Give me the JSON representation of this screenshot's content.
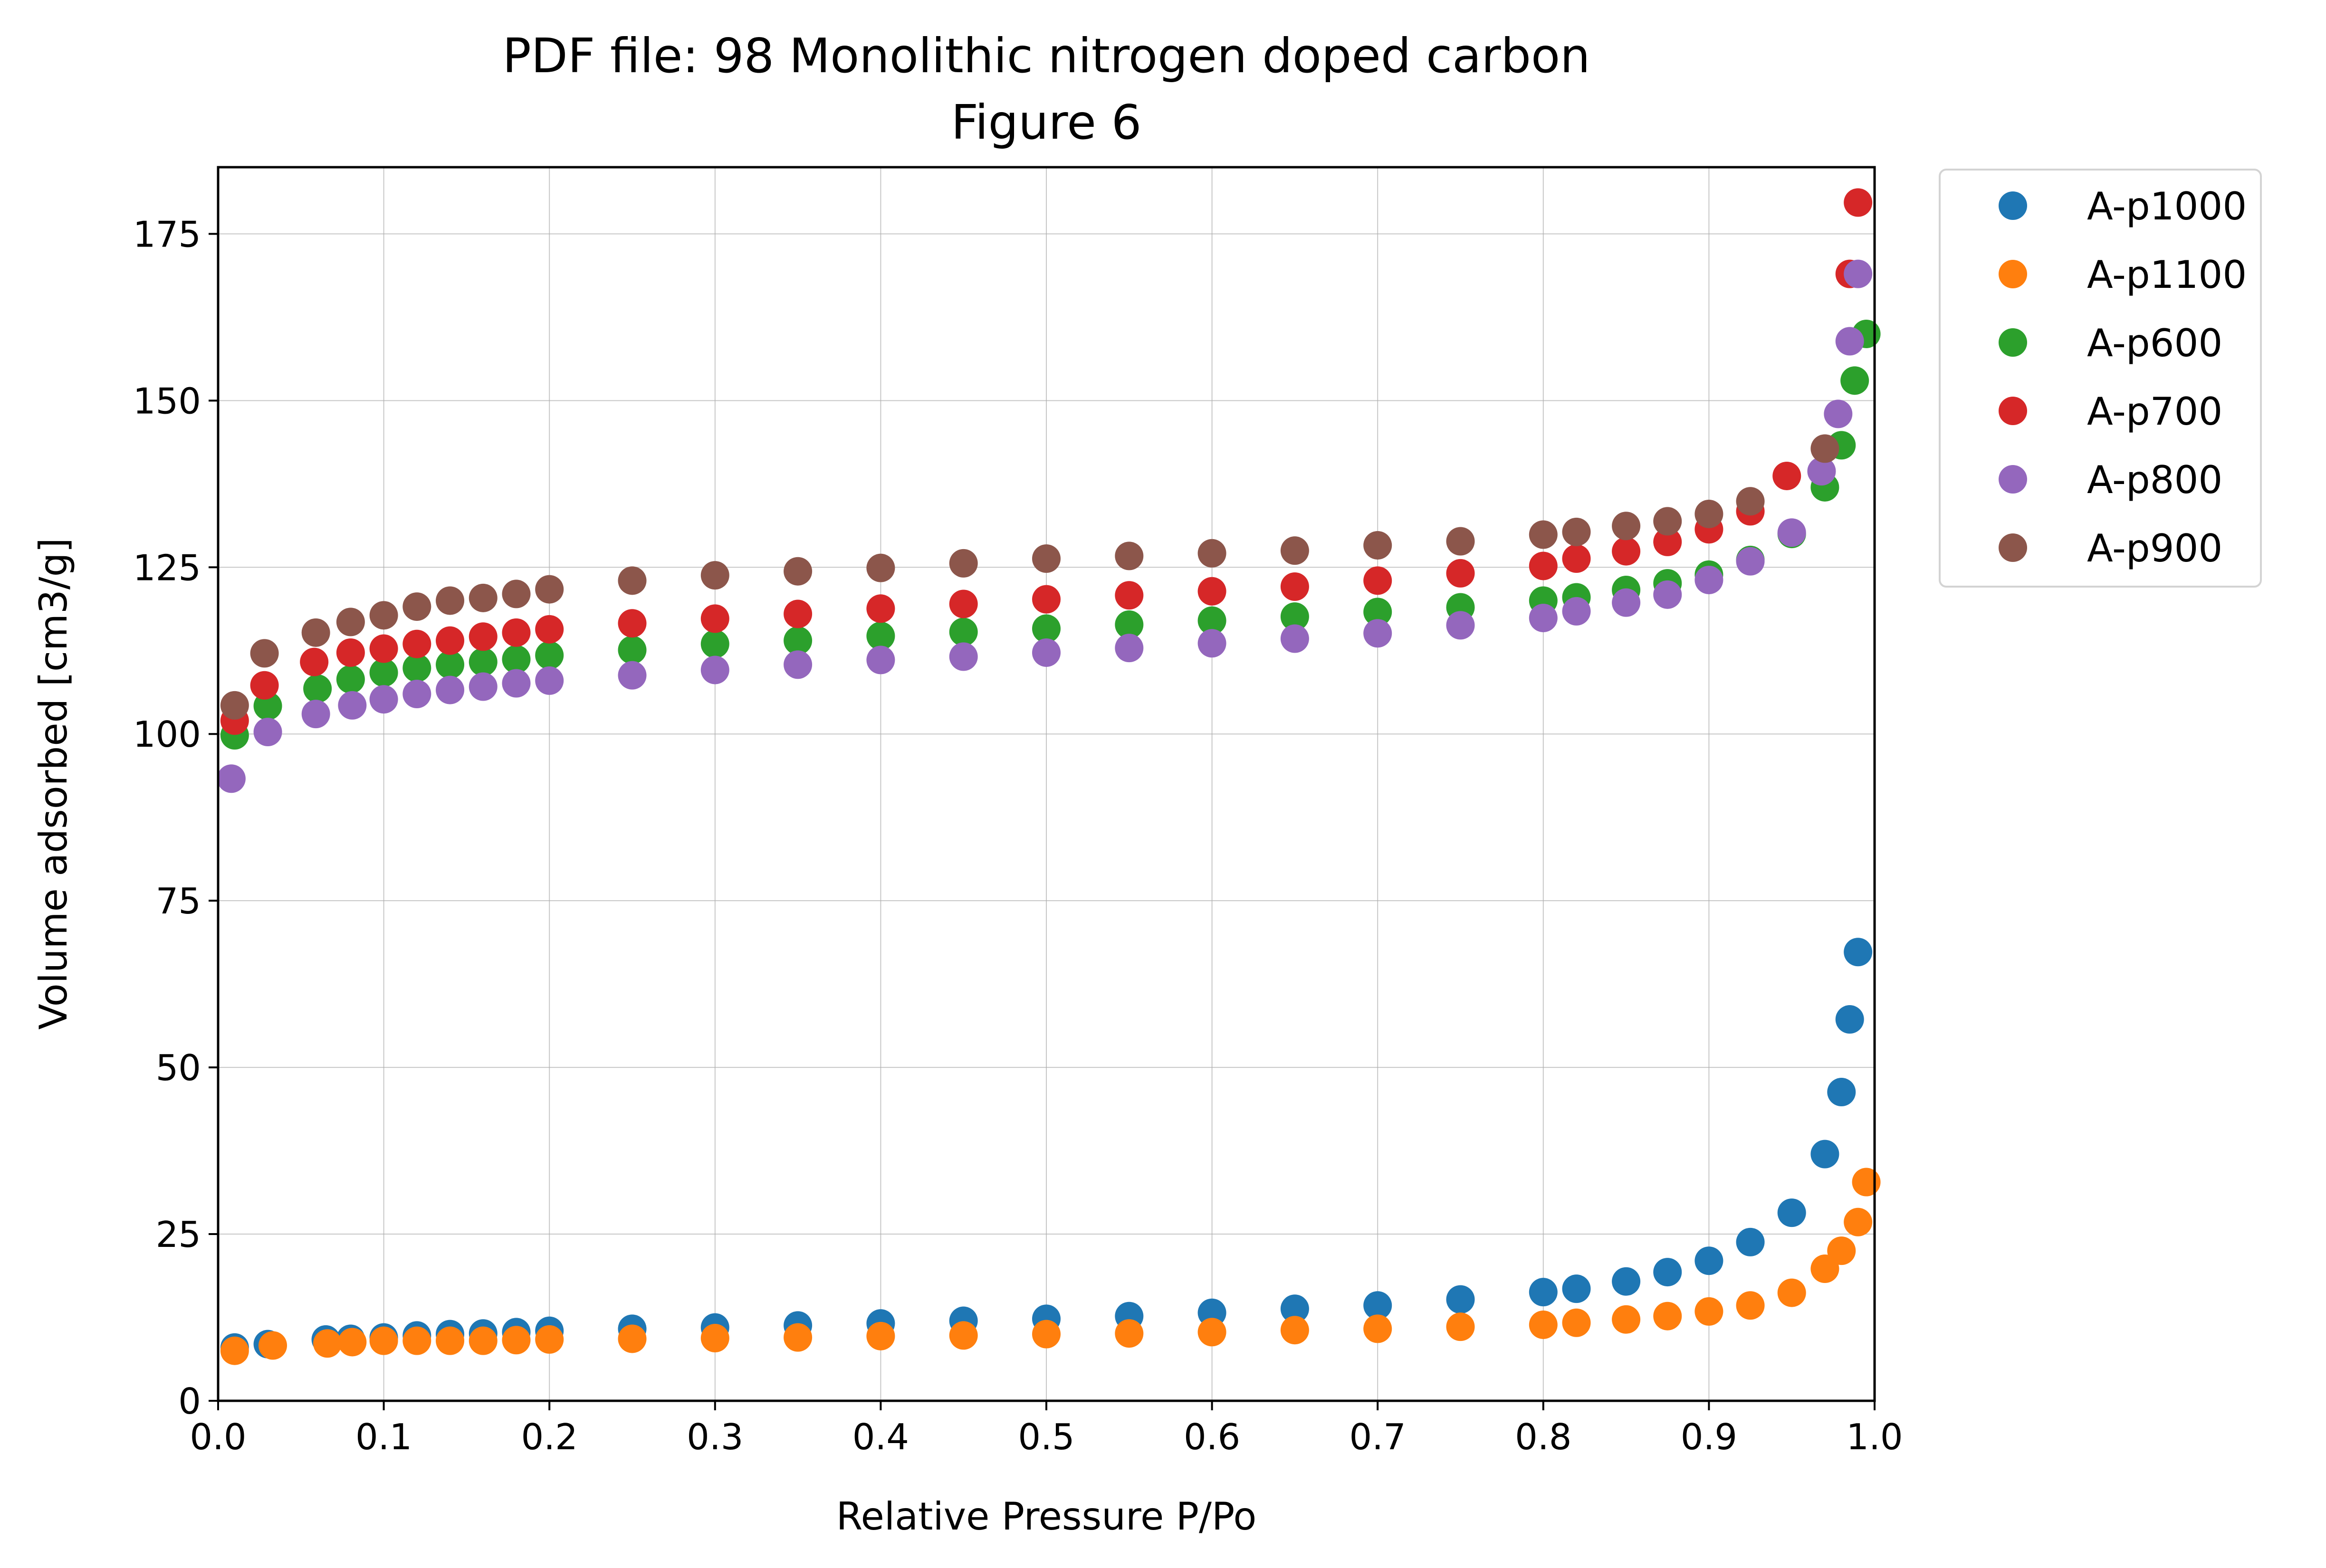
{
  "chart_data": {
    "type": "scatter",
    "title": "PDF file: 98 Monolithic nitrogen doped carbon",
    "subtitle": "Figure 6",
    "xlabel": "Relative Pressure P/Po",
    "ylabel": "Volume adsorbed [cm3/g]",
    "xlim": [
      0.0,
      1.0
    ],
    "ylim": [
      0,
      185
    ],
    "x_ticks": [
      0.0,
      0.1,
      0.2,
      0.3,
      0.4,
      0.5,
      0.6,
      0.7,
      0.8,
      0.9,
      1.0
    ],
    "x_tick_labels": [
      "0.0",
      "0.1",
      "0.2",
      "0.3",
      "0.4",
      "0.5",
      "0.6",
      "0.7",
      "0.8",
      "0.9",
      "1.0"
    ],
    "y_ticks": [
      0,
      25,
      50,
      75,
      100,
      125,
      150,
      175
    ],
    "y_tick_labels": [
      "0",
      "25",
      "50",
      "75",
      "100",
      "125",
      "150",
      "175"
    ],
    "grid": true,
    "legend_position": "outside-right-top",
    "series": [
      {
        "name": "A-p1000",
        "color": "#1f77b4",
        "x": [
          0.01,
          0.03,
          0.065,
          0.08,
          0.1,
          0.12,
          0.14,
          0.16,
          0.18,
          0.2,
          0.25,
          0.3,
          0.35,
          0.4,
          0.45,
          0.5,
          0.55,
          0.6,
          0.65,
          0.7,
          0.75,
          0.8,
          0.82,
          0.85,
          0.875,
          0.9,
          0.925,
          0.95,
          0.97,
          0.98,
          0.985,
          0.99
        ],
        "y": [
          8.0,
          8.5,
          9.2,
          9.3,
          9.5,
          9.8,
          10.0,
          10.1,
          10.3,
          10.5,
          10.8,
          11.0,
          11.3,
          11.6,
          12.0,
          12.3,
          12.7,
          13.2,
          13.8,
          14.3,
          15.2,
          16.3,
          16.8,
          17.9,
          19.3,
          21.0,
          23.8,
          28.2,
          37.0,
          46.3,
          57.2,
          67.3
        ]
      },
      {
        "name": "A-p1100",
        "color": "#ff7f0e",
        "x": [
          0.01,
          0.033,
          0.066,
          0.081,
          0.1,
          0.12,
          0.14,
          0.16,
          0.18,
          0.2,
          0.25,
          0.3,
          0.35,
          0.4,
          0.45,
          0.5,
          0.55,
          0.6,
          0.65,
          0.7,
          0.75,
          0.8,
          0.82,
          0.85,
          0.875,
          0.9,
          0.925,
          0.95,
          0.97,
          0.98,
          0.99,
          0.995
        ],
        "y": [
          7.5,
          8.3,
          8.6,
          8.8,
          9.0,
          9.0,
          9.0,
          9.0,
          9.1,
          9.2,
          9.3,
          9.4,
          9.5,
          9.7,
          9.8,
          10.0,
          10.1,
          10.3,
          10.6,
          10.8,
          11.1,
          11.4,
          11.7,
          12.2,
          12.7,
          13.4,
          14.3,
          16.2,
          19.8,
          22.5,
          26.8,
          32.8
        ]
      },
      {
        "name": "A-p600",
        "color": "#2ca02c",
        "x": [
          0.01,
          0.03,
          0.06,
          0.08,
          0.1,
          0.12,
          0.14,
          0.16,
          0.18,
          0.2,
          0.25,
          0.3,
          0.35,
          0.4,
          0.45,
          0.5,
          0.55,
          0.6,
          0.65,
          0.7,
          0.75,
          0.8,
          0.82,
          0.85,
          0.875,
          0.9,
          0.925,
          0.95,
          0.97,
          0.98,
          0.988,
          0.995
        ],
        "y": [
          99.8,
          104.2,
          106.8,
          108.2,
          109.2,
          109.9,
          110.4,
          110.8,
          111.2,
          111.8,
          112.6,
          113.5,
          114.0,
          114.7,
          115.3,
          115.8,
          116.4,
          117.0,
          117.6,
          118.3,
          119.0,
          120.0,
          120.5,
          121.6,
          122.6,
          123.9,
          126.1,
          130.0,
          137.0,
          143.3,
          153.0,
          160.0
        ]
      },
      {
        "name": "A-p700",
        "color": "#d62728",
        "x": [
          0.01,
          0.028,
          0.058,
          0.08,
          0.1,
          0.12,
          0.14,
          0.16,
          0.18,
          0.2,
          0.25,
          0.3,
          0.35,
          0.4,
          0.45,
          0.5,
          0.55,
          0.6,
          0.65,
          0.7,
          0.75,
          0.8,
          0.82,
          0.85,
          0.875,
          0.9,
          0.925,
          0.947,
          0.985,
          0.99
        ],
        "y": [
          102.0,
          107.3,
          110.8,
          112.2,
          112.8,
          113.5,
          114.0,
          114.6,
          115.2,
          115.7,
          116.6,
          117.3,
          118.0,
          118.8,
          119.5,
          120.2,
          120.8,
          121.4,
          122.1,
          123.0,
          124.1,
          125.2,
          126.3,
          127.4,
          128.8,
          130.7,
          133.4,
          138.7,
          169.0,
          179.7
        ]
      },
      {
        "name": "A-p800",
        "color": "#9467bd",
        "x": [
          0.008,
          0.03,
          0.059,
          0.081,
          0.1,
          0.12,
          0.14,
          0.16,
          0.18,
          0.2,
          0.25,
          0.3,
          0.35,
          0.4,
          0.45,
          0.5,
          0.55,
          0.6,
          0.65,
          0.7,
          0.75,
          0.8,
          0.82,
          0.85,
          0.875,
          0.9,
          0.925,
          0.95,
          0.968,
          0.978,
          0.985,
          0.99
        ],
        "y": [
          93.3,
          100.3,
          103.0,
          104.3,
          105.2,
          106.0,
          106.6,
          107.1,
          107.6,
          108.0,
          108.8,
          109.6,
          110.4,
          111.1,
          111.6,
          112.2,
          112.9,
          113.6,
          114.3,
          115.1,
          116.3,
          117.4,
          118.4,
          119.7,
          120.9,
          123.1,
          125.9,
          130.2,
          139.4,
          148.0,
          158.9,
          169.0
        ]
      },
      {
        "name": "A-p900",
        "color": "#8c564b",
        "x": [
          0.01,
          0.028,
          0.059,
          0.08,
          0.1,
          0.12,
          0.14,
          0.16,
          0.18,
          0.2,
          0.25,
          0.3,
          0.35,
          0.4,
          0.45,
          0.5,
          0.55,
          0.6,
          0.65,
          0.7,
          0.75,
          0.8,
          0.82,
          0.85,
          0.875,
          0.9,
          0.925,
          0.97
        ],
        "y": [
          104.3,
          112.1,
          115.2,
          116.8,
          117.8,
          119.1,
          120.0,
          120.4,
          121.0,
          121.7,
          123.0,
          123.8,
          124.4,
          124.9,
          125.6,
          126.3,
          126.7,
          127.1,
          127.5,
          128.3,
          128.9,
          129.9,
          130.3,
          131.2,
          131.9,
          133.0,
          134.9,
          142.8
        ]
      }
    ]
  }
}
